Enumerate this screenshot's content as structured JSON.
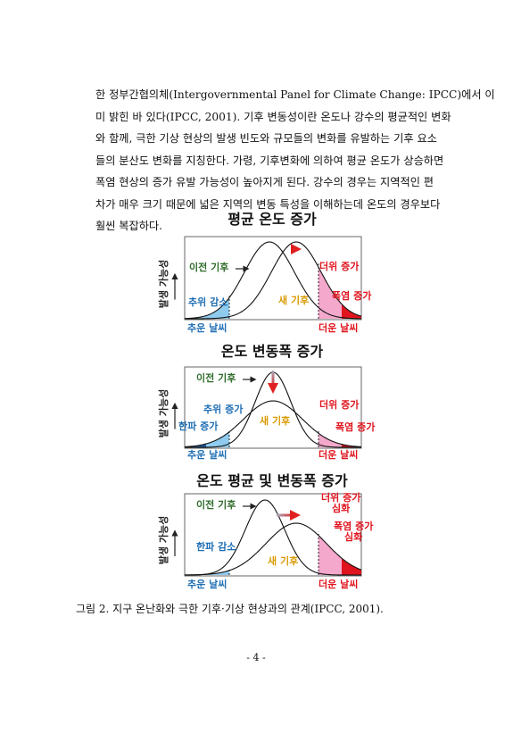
{
  "body": {
    "lines": [
      "한 정부간협의체(Intergovernmental Panel for Climate Change: IPCC)에서 이",
      "미 밝힌 바 있다(IPCC, 2001). 기후 변동성이란 온도나 강수의 평균적인 변화",
      "와 함께, 극한 기상 현상의 발생 빈도와 규모들의 변화를 유발하는 기후 요소",
      "들의 분산도 변화를 지칭한다. 가령, 기후변화에 의하여 평균 온도가 상승하면",
      "폭염 현상의 증가 유발 가능성이 높아지게 된다. 강수의 경우는 지역적인 편",
      "차가 매우 크기 때문에 넓은 지역의 변동 특성을 이해하는데 온도의 경우보다",
      "훨씬 복잡하다."
    ]
  },
  "figures": [
    {
      "title": "평균 온도 증가",
      "y_axis_label": "발생 가능성",
      "labels": [
        "이전 기후",
        "새 기후",
        "추위 감소",
        "더위 증가",
        "폭염 증가",
        "추운 날씨",
        "더운 날씨"
      ]
    },
    {
      "title": "온도 변동폭 증가",
      "y_axis_label": "발생 가능성",
      "labels": [
        "이전 기후",
        "새 기후",
        "추위 증가",
        "한파 증가",
        "더위 증가",
        "폭염 증가",
        "추운 날씨",
        "더운 날씨"
      ]
    },
    {
      "title": "온도 평균 및 변동폭 증가",
      "y_axis_label": "발생 가능성",
      "labels": [
        "이전 기후",
        "새 기후",
        "한파 감소",
        "더위 증가\n심화",
        "폭염 증가\n심화",
        "추운 날씨",
        "더운 날씨"
      ]
    }
  ],
  "caption": "그림 2. 지구 온난화와 극한 기후·기상 현상과의 관계(IPCC, 2001).",
  "page_number": "- 4 -"
}
